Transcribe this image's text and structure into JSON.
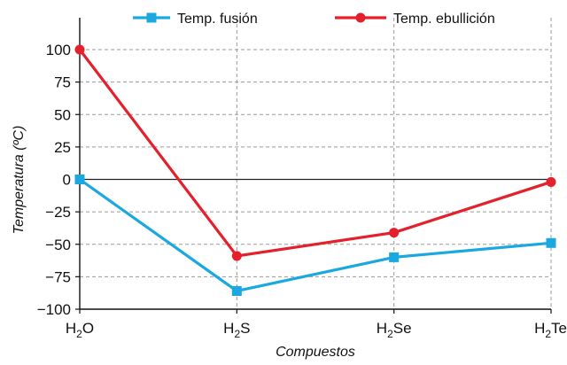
{
  "chart_data": {
    "type": "line",
    "categories": [
      {
        "base": "H",
        "sub": "2",
        "rest": "O"
      },
      {
        "base": "H",
        "sub": "2",
        "rest": "S"
      },
      {
        "base": "H",
        "sub": "2",
        "rest": "Se"
      },
      {
        "base": "H",
        "sub": "2",
        "rest": "Te"
      }
    ],
    "series": [
      {
        "name": "Temp. fusión",
        "values": [
          0,
          -86,
          -60,
          -49
        ],
        "color": "#1ba8e0",
        "marker": "square"
      },
      {
        "name": "Temp. ebullición",
        "values": [
          100,
          -59,
          -41,
          -2
        ],
        "color": "#e3202b",
        "marker": "circle"
      }
    ],
    "xlabel": "Compuestos",
    "ylabel": "Temperatura (ºC)",
    "ylim": [
      -100,
      100
    ],
    "yticks": [
      100,
      75,
      50,
      25,
      0,
      -25,
      -50,
      -75,
      -100
    ],
    "ytick_labels": [
      "100",
      "75",
      "50",
      "25",
      "0",
      "−25",
      "−50",
      "−75",
      "−100"
    ],
    "grid": true,
    "legend_position": "top"
  }
}
